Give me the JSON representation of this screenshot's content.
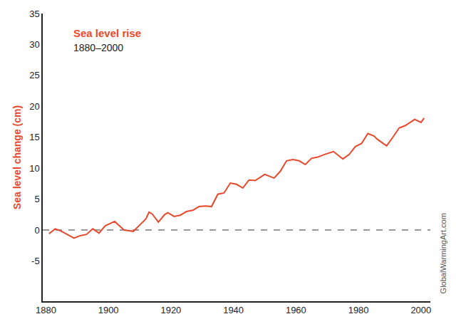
{
  "chart_data": {
    "type": "line",
    "title": "Sea level rise",
    "subtitle": "1880–2000",
    "ylabel": "Sea level change (cm)",
    "annotations": [
      "GlobalWarmingArt.com"
    ],
    "color": "#e8482c",
    "reference_y": 0,
    "x": [
      1881,
      1883,
      1885,
      1889,
      1891,
      1893,
      1895,
      1897,
      1899,
      1902,
      1905,
      1908,
      1910,
      1912,
      1913,
      1914,
      1916,
      1918,
      1919,
      1921,
      1923,
      1925,
      1927,
      1929,
      1931,
      1933,
      1935,
      1937,
      1939,
      1941,
      1943,
      1945,
      1947,
      1950,
      1953,
      1955,
      1957,
      1959,
      1961,
      1963,
      1965,
      1967,
      1969,
      1972,
      1975,
      1977,
      1979,
      1981,
      1983,
      1985,
      1986,
      1989,
      1991,
      1993,
      1995,
      1997,
      1998,
      2000,
      2001
    ],
    "values": [
      -0.6,
      0.2,
      -0.2,
      -1.3,
      -0.9,
      -0.7,
      0.2,
      -0.5,
      0.7,
      1.4,
      0.0,
      -0.2,
      0.8,
      1.8,
      2.9,
      2.6,
      1.3,
      2.5,
      2.8,
      2.2,
      2.4,
      3.0,
      3.2,
      3.8,
      3.9,
      3.8,
      5.8,
      6.0,
      7.6,
      7.4,
      6.8,
      8.1,
      8.0,
      9.0,
      8.4,
      9.5,
      11.2,
      11.4,
      11.2,
      10.6,
      11.6,
      11.8,
      12.2,
      12.7,
      11.5,
      12.2,
      13.5,
      14.0,
      15.6,
      15.2,
      14.7,
      13.6,
      15.0,
      16.5,
      16.9,
      17.6,
      17.9,
      17.4,
      18.1
    ],
    "xlim": [
      1879,
      2003
    ],
    "xticks": [
      1880,
      1900,
      1920,
      1940,
      1960,
      1980,
      2000
    ],
    "ylim": [
      -11.5,
      35
    ],
    "yticks": [
      -5,
      0,
      5,
      10,
      15,
      20,
      25,
      30,
      35
    ],
    "grid": false
  }
}
